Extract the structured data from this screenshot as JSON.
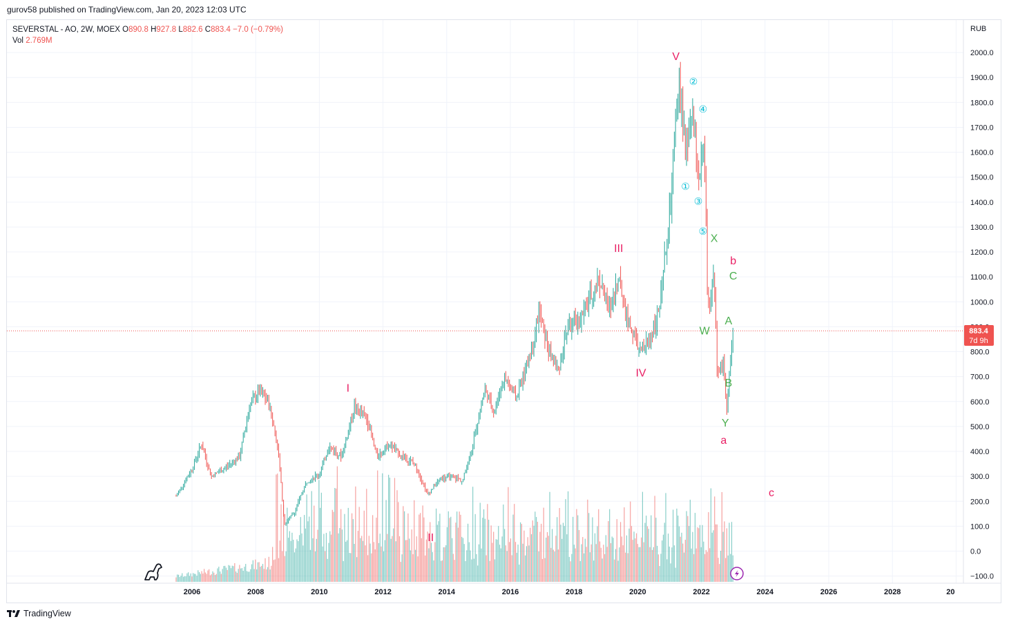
{
  "publisher": "gurov58 published on TradingView.com, Jan 20, 2023 12:03 UTC",
  "legend": {
    "symbol": "SEVERSTAL - AO, 2W, MOEX",
    "open_label": "O",
    "open": "890.8",
    "high_label": "H",
    "high": "927.8",
    "low_label": "L",
    "low": "882.6",
    "close_label": "C",
    "close": "883.4",
    "change": "−7.0 (−0.79%)",
    "vol_label": "Vol",
    "vol": "2.769M"
  },
  "footer_brand": "TradingView",
  "colors": {
    "up": "#26a69a",
    "down": "#ef5350",
    "label_red": "#e91e63",
    "label_green": "#4caf50",
    "label_cyan": "#00bcd4",
    "grid": "#f0f3fa"
  },
  "chart_data": {
    "type": "candlestick",
    "currency": "RUB",
    "y_ticks": [
      "2000.0",
      "1900.0",
      "1800.0",
      "1700.0",
      "1600.0",
      "1500.0",
      "1400.0",
      "1300.0",
      "1200.0",
      "1100.0",
      "1000.0",
      "900.0",
      "800.0",
      "700.0",
      "600.0",
      "500.0",
      "400.0",
      "300.0",
      "200.0",
      "100.0",
      "0.0",
      "−100.0"
    ],
    "x_ticks": [
      "2006",
      "2008",
      "2010",
      "2012",
      "2014",
      "2016",
      "2018",
      "2020",
      "2022",
      "2024",
      "2026",
      "2028",
      "20"
    ],
    "ylim": [
      -100,
      2000
    ],
    "last_price": "883.4",
    "countdown": "7d 9h",
    "price_path": [
      {
        "x": 2005.5,
        "y": 220
      },
      {
        "x": 2006.0,
        "y": 330
      },
      {
        "x": 2006.3,
        "y": 430
      },
      {
        "x": 2006.6,
        "y": 300
      },
      {
        "x": 2007.0,
        "y": 330
      },
      {
        "x": 2007.5,
        "y": 380
      },
      {
        "x": 2007.8,
        "y": 580
      },
      {
        "x": 2008.1,
        "y": 640
      },
      {
        "x": 2008.4,
        "y": 600
      },
      {
        "x": 2008.7,
        "y": 420
      },
      {
        "x": 2008.9,
        "y": 110
      },
      {
        "x": 2009.2,
        "y": 150
      },
      {
        "x": 2009.6,
        "y": 280
      },
      {
        "x": 2010.0,
        "y": 310
      },
      {
        "x": 2010.3,
        "y": 420
      },
      {
        "x": 2010.7,
        "y": 380
      },
      {
        "x": 2011.1,
        "y": 580
      },
      {
        "x": 2011.5,
        "y": 530
      },
      {
        "x": 2011.8,
        "y": 380
      },
      {
        "x": 2012.2,
        "y": 430
      },
      {
        "x": 2012.6,
        "y": 380
      },
      {
        "x": 2013.0,
        "y": 350
      },
      {
        "x": 2013.4,
        "y": 230
      },
      {
        "x": 2013.8,
        "y": 290
      },
      {
        "x": 2014.2,
        "y": 300
      },
      {
        "x": 2014.5,
        "y": 280
      },
      {
        "x": 2014.8,
        "y": 420
      },
      {
        "x": 2015.2,
        "y": 650
      },
      {
        "x": 2015.5,
        "y": 560
      },
      {
        "x": 2015.8,
        "y": 700
      },
      {
        "x": 2016.2,
        "y": 620
      },
      {
        "x": 2016.6,
        "y": 780
      },
      {
        "x": 2016.9,
        "y": 960
      },
      {
        "x": 2017.2,
        "y": 800
      },
      {
        "x": 2017.5,
        "y": 720
      },
      {
        "x": 2017.8,
        "y": 900
      },
      {
        "x": 2018.2,
        "y": 930
      },
      {
        "x": 2018.5,
        "y": 1020
      },
      {
        "x": 2018.8,
        "y": 1090
      },
      {
        "x": 2019.1,
        "y": 960
      },
      {
        "x": 2019.4,
        "y": 1090
      },
      {
        "x": 2019.7,
        "y": 920
      },
      {
        "x": 2020.1,
        "y": 790
      },
      {
        "x": 2020.4,
        "y": 860
      },
      {
        "x": 2020.7,
        "y": 980
      },
      {
        "x": 2021.0,
        "y": 1350
      },
      {
        "x": 2021.3,
        "y": 1880
      },
      {
        "x": 2021.5,
        "y": 1600
      },
      {
        "x": 2021.7,
        "y": 1750
      },
      {
        "x": 2021.9,
        "y": 1500
      },
      {
        "x": 2022.1,
        "y": 1600
      },
      {
        "x": 2022.2,
        "y": 950
      },
      {
        "x": 2022.4,
        "y": 1130
      },
      {
        "x": 2022.5,
        "y": 700
      },
      {
        "x": 2022.7,
        "y": 760
      },
      {
        "x": 2022.8,
        "y": 570
      },
      {
        "x": 2023.0,
        "y": 880
      }
    ],
    "annotations": [
      {
        "text": "I",
        "x": 2010.9,
        "y": 640,
        "color": "red"
      },
      {
        "text": "II",
        "x": 2013.5,
        "y": 40,
        "color": "red"
      },
      {
        "text": "III",
        "x": 2019.4,
        "y": 1200,
        "color": "red"
      },
      {
        "text": "IV",
        "x": 2020.1,
        "y": 700,
        "color": "red"
      },
      {
        "text": "V",
        "x": 2021.2,
        "y": 1970,
        "color": "red"
      },
      {
        "text": "a",
        "x": 2022.7,
        "y": 430,
        "color": "red"
      },
      {
        "text": "b",
        "x": 2023.0,
        "y": 1150,
        "color": "red"
      },
      {
        "text": "c",
        "x": 2024.2,
        "y": 220,
        "color": "red"
      },
      {
        "text": "W",
        "x": 2022.1,
        "y": 870,
        "color": "green"
      },
      {
        "text": "X",
        "x": 2022.4,
        "y": 1240,
        "color": "green"
      },
      {
        "text": "Y",
        "x": 2022.75,
        "y": 500,
        "color": "green"
      },
      {
        "text": "A",
        "x": 2022.85,
        "y": 910,
        "color": "green"
      },
      {
        "text": "B",
        "x": 2022.85,
        "y": 660,
        "color": "green"
      },
      {
        "text": "C",
        "x": 2023.0,
        "y": 1090,
        "color": "green"
      },
      {
        "text": "①",
        "x": 2021.5,
        "y": 1450,
        "color": "cyan"
      },
      {
        "text": "②",
        "x": 2021.75,
        "y": 1870,
        "color": "cyan"
      },
      {
        "text": "③",
        "x": 2021.9,
        "y": 1390,
        "color": "cyan"
      },
      {
        "text": "④",
        "x": 2022.05,
        "y": 1760,
        "color": "cyan"
      },
      {
        "text": "⑤",
        "x": 2022.05,
        "y": 1270,
        "color": "cyan"
      }
    ]
  }
}
